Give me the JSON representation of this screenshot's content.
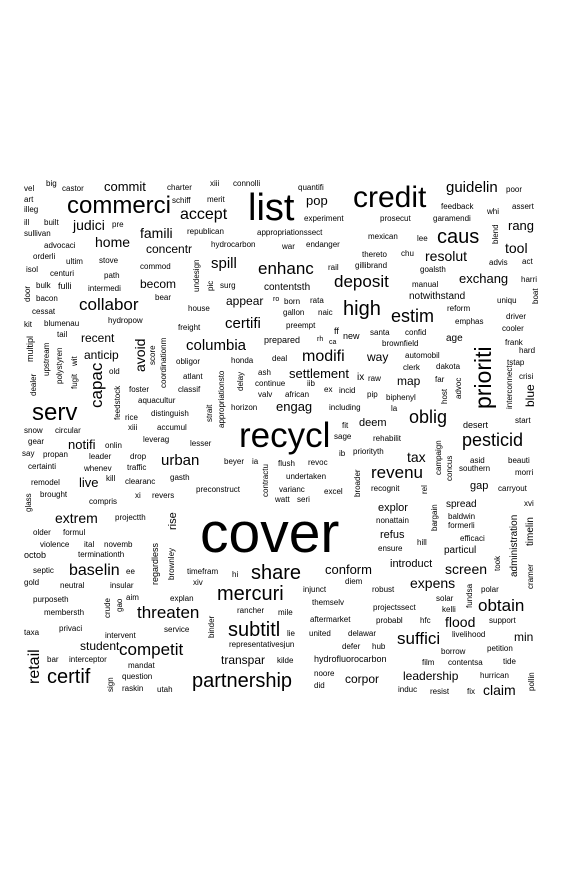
{
  "words": {
    "cover": "cover",
    "recycl": "recycl",
    "list": "list",
    "credit": "credit",
    "commerci": "commerci",
    "priorit": "prioriti",
    "serv": "serv",
    "share": "share",
    "mercuri": "mercuri",
    "partnership": "partnership",
    "subtitl": "subtitl",
    "certif": "certif",
    "caus": "caus",
    "high": "high",
    "estim": "estim",
    "oblig": "oblig",
    "pesticid": "pesticid",
    "deposit": "deposit",
    "collabor": "collabor",
    "threaten": "threaten",
    "competit": "competit",
    "suffici": "suffici",
    "obtain": "obtain",
    "guidelin": "guidelin",
    "accept": "accept",
    "enhanc": "enhanc",
    "revenu": "revenu",
    "modifi": "modifi",
    "capac": "capac",
    "retail": "retail",
    "baselin": "baselin",
    "urban": "urban",
    "columbia": "columbia",
    "certifi": "certifi",
    "spill": "spill",
    "famili": "famili",
    "judici": "judici",
    "home": "home",
    "commit": "commit",
    "extrem": "extrem",
    "screen": "screen",
    "flood": "flood",
    "claim": "claim",
    "tool": "tool",
    "resolut": "resolut",
    "exchang": "exchang",
    "rang": "rang",
    "tax": "tax",
    "expens": "expens",
    "conform": "conform",
    "engag": "engag",
    "settlement": "settlement",
    "pop": "pop",
    "avoid": "avoid",
    "anticip": "anticip",
    "recent": "recent",
    "notifi": "notifi",
    "live": "live",
    "becom": "becom",
    "concentr": "concentr",
    "appear": "appear",
    "way": "way",
    "map": "map",
    "student": "student",
    "transpar": "transpar",
    "corpor": "corpor",
    "leadership": "leadership",
    "min": "min",
    "blue": "blue",
    "administration": "administration",
    "deem": "deem",
    "explor": "explor",
    "refus": "refus",
    "introduct": "introduct",
    "gap": "gap",
    "spread": "spread",
    "particul": "particul",
    "rise": "rise",
    "contentsth": "contentsth",
    "notwithstand": "notwithstand",
    "age": "age",
    "desert": "desert",
    "timelin": "timelin",
    "big": "big",
    "castor": "castor",
    "charter": "charter",
    "xiii": "xiii",
    "connolli": "connolli",
    "quantifi": "quantifi",
    "poor": "poor",
    "vel": "vel",
    "art": "art",
    "illeg": "illeg",
    "ill": "ill",
    "sullivan": "sullivan",
    "built": "built",
    "pre": "pre",
    "schiff": "schiff",
    "merit": "merit",
    "experiment": "experiment",
    "prosecut": "prosecut",
    "feedback": "feedback",
    "garamendi": "garamendi",
    "whi": "whi",
    "assert": "assert",
    "blend": "blend",
    "advocaci": "advocaci",
    "republican": "republican",
    "appropriationssect": "appropriationssect",
    "mexican": "mexican",
    "lee": "lee",
    "hydrocarbon": "hydrocarbon",
    "war": "war",
    "endanger": "endanger",
    "thereto": "thereto",
    "chu": "chu",
    "orderli": "orderli",
    "ultim": "ultim",
    "stove": "stove",
    "isol": "isol",
    "centuri": "centuri",
    "commod": "commod",
    "undesign": "undesign",
    "rail": "rail",
    "gillibrand": "gillibrand",
    "goalsth": "goalsth",
    "advis": "advis",
    "act": "act",
    "path": "path",
    "pic": "pic",
    "harri": "harri",
    "door": "door",
    "bulk": "bulk",
    "fulli": "fulli",
    "intermedi": "intermedi",
    "surg": "surg",
    "manual": "manual",
    "bacon": "bacon",
    "bear": "bear",
    "born": "born",
    "rata": "rata",
    "ro": "ro",
    "uniqu": "uniqu",
    "boat": "boat",
    "cessat": "cessat",
    "house": "house",
    "gallon": "gallon",
    "naic": "naic",
    "reform": "reform",
    "driver": "driver",
    "kit": "kit",
    "blumenau": "blumenau",
    "hydropow": "hydropow",
    "freight": "freight",
    "preempt": "preempt",
    "emphas": "emphas",
    "cooler": "cooler",
    "multipl": "multipl",
    "tail": "tail",
    "score": "score",
    "ff": "ff",
    "santa": "santa",
    "confid": "confid",
    "frank": "frank",
    "upstream": "upstream",
    "coordinationm": "coordinationm",
    "prepared": "prepared",
    "rh": "rh",
    "ca": "ca",
    "new": "new",
    "brownfield": "brownfield",
    "hard": "hard",
    "polystyren": "polystyren",
    "obligor": "obligor",
    "honda": "honda",
    "deal": "deal",
    "automobil": "automobil",
    "tstap": "tstap",
    "dealer": "dealer",
    "fugit": "fugit",
    "wit": "wit",
    "old": "old",
    "atlant": "atlant",
    "ash": "ash",
    "iib": "iib",
    "ix": "ix",
    "raw": "raw",
    "clerk": "clerk",
    "dakota": "dakota",
    "crisi": "crisi",
    "foster": "foster",
    "classif": "classif",
    "appropriationsto": "appropriationsto",
    "delay": "delay",
    "continue": "continue",
    "ex": "ex",
    "incid": "incid",
    "far": "far",
    "interconnect": "interconnect",
    "valv": "valv",
    "african": "african",
    "pip": "pip",
    "biphenyl": "biphenyl",
    "advoc": "advoc",
    "host": "host",
    "aquacultur": "aquacultur",
    "horizon": "horizon",
    "including": "including",
    "la": "la",
    "rice": "rice",
    "distinguish": "distinguish",
    "strait": "strait",
    "start": "start",
    "snow": "snow",
    "circular": "circular",
    "feedstock": "feedstock",
    "xiii2": "xiii",
    "accumul": "accumul",
    "fit": "fit",
    "gear": "gear",
    "onlin": "onlin",
    "leverag": "leverag",
    "lesser": "lesser",
    "sage": "sage",
    "rehabilit": "rehabilit",
    "say": "say",
    "propan": "propan",
    "leader": "leader",
    "drop": "drop",
    "ib": "ib",
    "priorityth": "priorityth",
    "campaign": "campaign",
    "asid": "asid",
    "beauti": "beauti",
    "certainti": "certainti",
    "whenev": "whenev",
    "traffic": "traffic",
    "beyer": "beyer",
    "ia": "ia",
    "flush": "flush",
    "revoc": "revoc",
    "southern": "southern",
    "morri": "morri",
    "kill": "kill",
    "clearanc": "clearanc",
    "gasth": "gasth",
    "undertaken": "undertaken",
    "concus": "concus",
    "remodel": "remodel",
    "variance": "varianc",
    "excel": "excel",
    "recognit": "recognit",
    "rel": "rel",
    "carryout": "carryout",
    "brought": "brought",
    "glass": "glass",
    "xi": "xi",
    "revers": "revers",
    "preconstruct": "preconstruct",
    "contractu": "contractu",
    "broader": "broader",
    "compris": "compris",
    "watt": "watt",
    "seri": "seri",
    "bargain": "bargain",
    "xvi": "xvi",
    "projectth": "projectth",
    "nonattain": "nonattain",
    "baldwin": "baldwin",
    "efficaci": "efficaci",
    "older": "older",
    "formul": "formul",
    "formerli": "formerli",
    "violence": "violence",
    "ital": "ital",
    "novemb": "novemb",
    "hill": "hill",
    "ensure": "ensure",
    "octob": "octob",
    "terminationth": "terminationth",
    "brownley": "brownley",
    "regardless": "regardless",
    "took": "took",
    "septic": "septic",
    "ee": "ee",
    "timefram": "timefram",
    "hi": "hi",
    "diem": "diem",
    "gold": "gold",
    "neutral": "neutral",
    "insular": "insular",
    "xiv": "xiv",
    "injunct": "injunct",
    "robust": "robust",
    "fundsa": "fundsa",
    "polar": "polar",
    "cramer": "cramer",
    "purposeth": "purposeth",
    "aim": "aim",
    "explan": "explan",
    "rancher": "rancher",
    "mile": "mile",
    "themselv": "themselv",
    "projectssect": "projectssect",
    "solar": "solar",
    "kelli": "kelli",
    "membersth": "membersth",
    "crude": "crude",
    "gao": "gao",
    "binder": "binder",
    "aftermarket": "aftermarket",
    "probabl": "probabl",
    "hfc": "hfc",
    "support": "support",
    "taxa": "taxa",
    "privaci": "privaci",
    "intervent": "intervent",
    "service": "service",
    "lie": "lie",
    "united": "united",
    "delawar": "delawar",
    "livelihood": "livelihood",
    "representativesjun": "representativesjun",
    "defer": "defer",
    "hub": "hub",
    "borrow": "borrow",
    "petition": "petition",
    "bar": "bar",
    "interceptor": "interceptor",
    "mandat": "mandat",
    "kilde": "kilde",
    "hydrofluorocarbon": "hydrofluorocarbon",
    "film": "film",
    "contentsa": "contentsa",
    "tide": "tide",
    "sign": "sign",
    "question": "question",
    "noore": "noore",
    "hurrican": "hurrican",
    "pollin": "pollin",
    "raskin": "raskin",
    "utah": "utah",
    "did": "did",
    "induc": "induc",
    "resist": "resist",
    "fix": "fix"
  }
}
